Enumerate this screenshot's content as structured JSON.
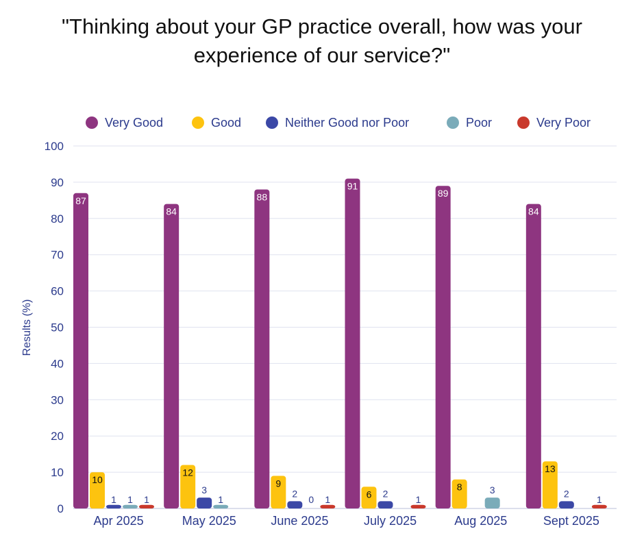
{
  "chart_data": {
    "type": "bar",
    "title_lines": [
      "\"Thinking about your GP practice overall, how was your",
      "experience of our service?\""
    ],
    "xlabel": "",
    "ylabel": "Results (%)",
    "ylim": [
      0,
      100
    ],
    "yticks": [
      0,
      10,
      20,
      30,
      40,
      50,
      60,
      70,
      80,
      90,
      100
    ],
    "grid": true,
    "legend_position": "top",
    "categories": [
      "Apr 2025",
      "May 2025",
      "June 2025",
      "July 2025",
      "Aug 2025",
      "Sept 2025"
    ],
    "series": [
      {
        "name": "Very Good",
        "color": "#8e3580",
        "label_color": "#ffffff",
        "label_inside": true,
        "values": [
          87,
          84,
          88,
          91,
          89,
          84
        ],
        "labels": [
          "87",
          "84",
          "88",
          "91",
          "89",
          "84"
        ]
      },
      {
        "name": "Good",
        "color": "#fdc30f",
        "label_color": "#111111",
        "label_inside": true,
        "values": [
          10,
          12,
          9,
          6,
          8,
          13
        ],
        "labels": [
          "10",
          "12",
          "9",
          "6",
          "8",
          "13"
        ]
      },
      {
        "name": "Neither Good nor Poor",
        "color": "#3b48a6",
        "label_color": "#2b3a8c",
        "label_inside": false,
        "values": [
          1,
          3,
          2,
          2,
          0,
          2
        ],
        "labels": [
          "1",
          "3",
          "2",
          "2",
          "",
          "2"
        ]
      },
      {
        "name": "Poor",
        "color": "#7aabb9",
        "label_color": "#2b3a8c",
        "label_inside": false,
        "values": [
          1,
          1,
          0,
          0,
          3,
          0
        ],
        "labels": [
          "1",
          "1",
          "0",
          "",
          "3",
          ""
        ]
      },
      {
        "name": "Very Poor",
        "color": "#c9392c",
        "label_color": "#2b3a8c",
        "label_inside": false,
        "values": [
          1,
          0,
          1,
          1,
          0,
          1
        ],
        "labels": [
          "1",
          "",
          "1",
          "1",
          "",
          "1"
        ]
      }
    ]
  }
}
